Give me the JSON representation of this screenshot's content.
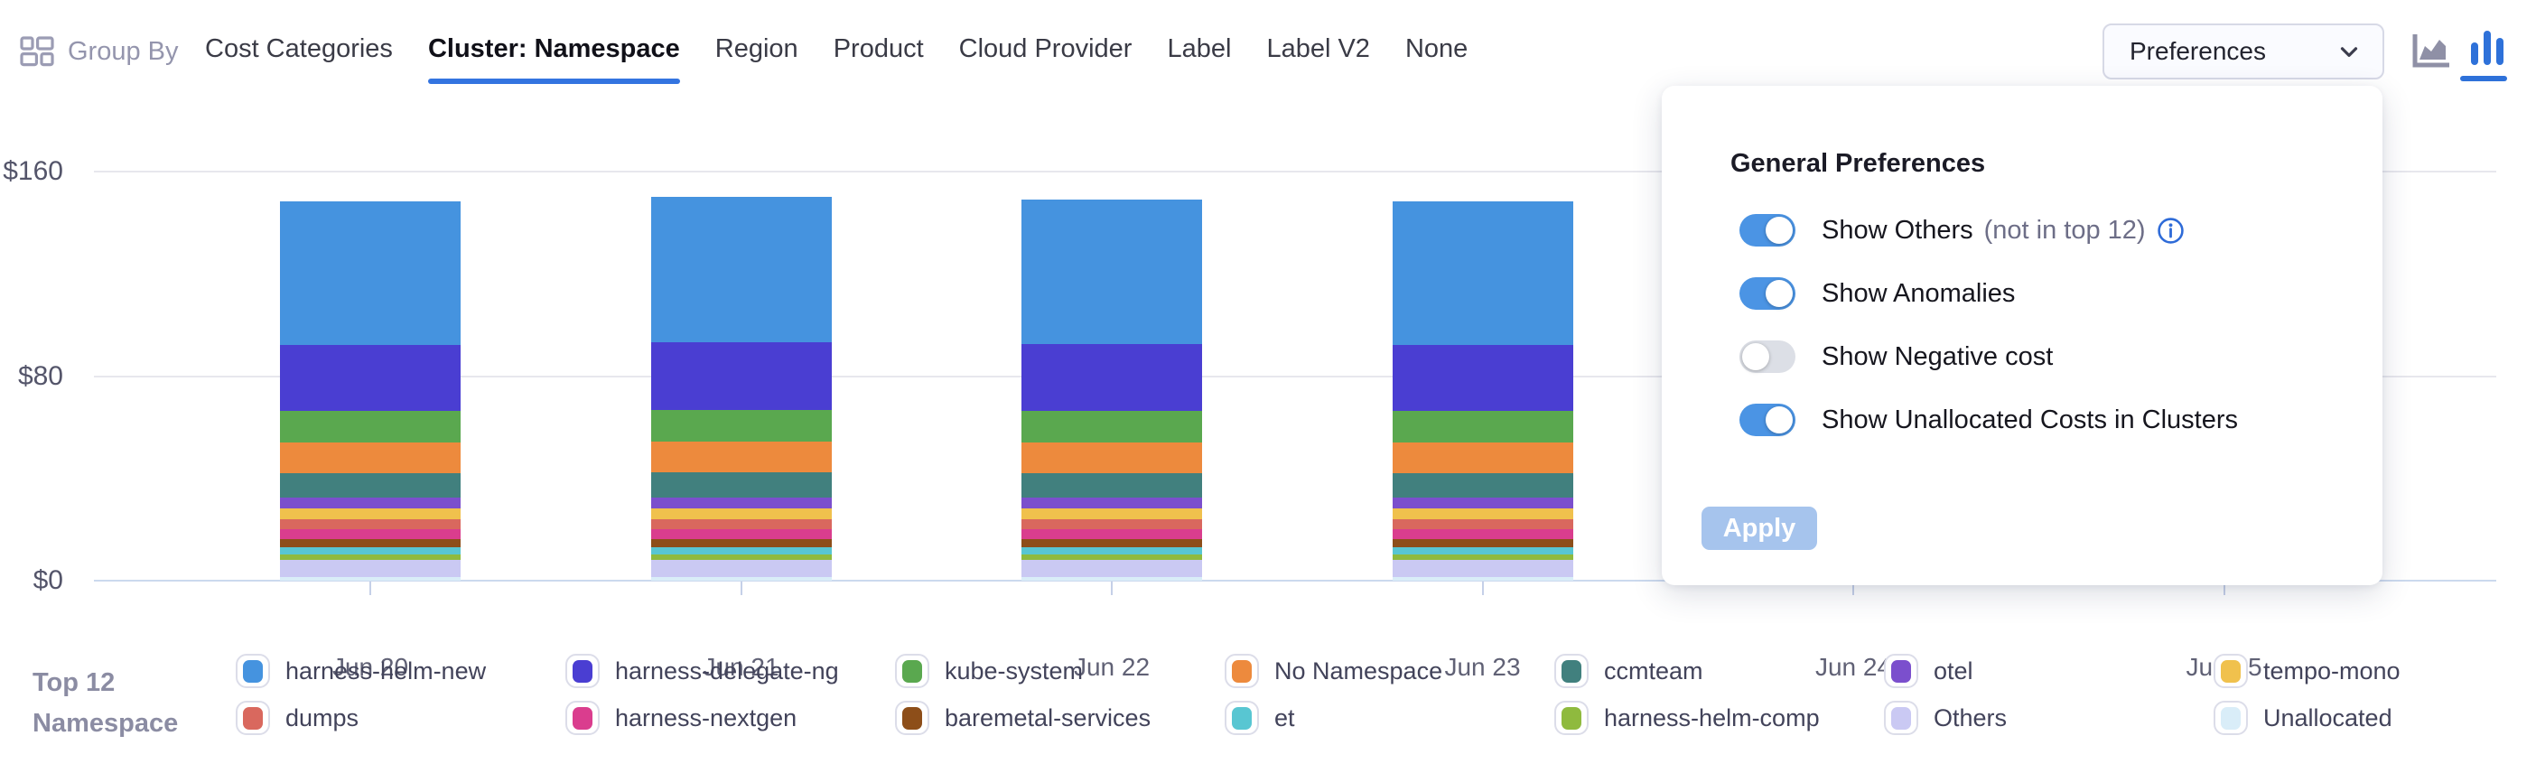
{
  "header": {
    "group_by_label": "Group By",
    "tabs": [
      {
        "label": "Cost Categories",
        "active": false
      },
      {
        "label": "Cluster: Namespace",
        "active": true
      },
      {
        "label": "Region",
        "active": false
      },
      {
        "label": "Product",
        "active": false
      },
      {
        "label": "Cloud Provider",
        "active": false
      },
      {
        "label": "Label",
        "active": false
      },
      {
        "label": "Label V2",
        "active": false
      },
      {
        "label": "None",
        "active": false
      }
    ],
    "preferences_button": {
      "label": "Preferences"
    },
    "chart_type_icons": [
      {
        "name": "area-chart",
        "active": false
      },
      {
        "name": "bar-chart",
        "active": true
      }
    ]
  },
  "preferences_panel": {
    "title": "General Preferences",
    "toggles": [
      {
        "label": "Show Others",
        "suffix": "(not in top 12)",
        "info_icon": true,
        "on": true
      },
      {
        "label": "Show Anomalies",
        "suffix": "",
        "info_icon": false,
        "on": true
      },
      {
        "label": "Show Negative cost",
        "suffix": "",
        "info_icon": false,
        "on": false
      },
      {
        "label": "Show Unallocated Costs in Clusters",
        "suffix": "",
        "info_icon": false,
        "on": true
      }
    ],
    "apply_button": {
      "label": "Apply",
      "enabled": false
    }
  },
  "legend": {
    "title_line1": "Top 12",
    "title_line2": "Namespace",
    "items": [
      {
        "label": "harness-helm-new",
        "color": "#4593df"
      },
      {
        "label": "harness-delegate-ng",
        "color": "#4a3ed2"
      },
      {
        "label": "kube-system",
        "color": "#5aa84f"
      },
      {
        "label": "No Namespace",
        "color": "#ed8a3d"
      },
      {
        "label": "ccmteam",
        "color": "#41807e"
      },
      {
        "label": "otel",
        "color": "#7b4fcd"
      },
      {
        "label": "tempo-mono",
        "color": "#f0c14d"
      },
      {
        "label": "dumps",
        "color": "#d9685e"
      },
      {
        "label": "harness-nextgen",
        "color": "#da3d8e"
      },
      {
        "label": "baremetal-services",
        "color": "#8d4e19"
      },
      {
        "label": "et",
        "color": "#58c6d2"
      },
      {
        "label": "harness-helm-comp",
        "color": "#8fba3e"
      },
      {
        "label": "Others",
        "color": "#cac9f3"
      },
      {
        "label": "Unallocated",
        "color": "#d9edf8"
      }
    ]
  },
  "chart_data": {
    "type": "bar",
    "stacked": true,
    "x_labels": [
      "Jun 20",
      "Jun 21",
      "Jun 22",
      "Jun 23",
      "Jun 24",
      "Jun 25"
    ],
    "y_ticks": [
      {
        "label": "$0",
        "value": 0
      },
      {
        "label": "$80",
        "value": 80
      },
      {
        "label": "$160",
        "value": 160
      }
    ],
    "ylim": [
      0,
      160
    ],
    "series_bottom_to_top": [
      {
        "name": "Unallocated",
        "values": [
          1.4,
          1.4,
          1.4,
          1.4,
          null,
          null
        ]
      },
      {
        "name": "Others",
        "values": [
          6.7,
          6.8,
          6.7,
          6.7,
          null,
          null
        ]
      },
      {
        "name": "harness-helm-comp",
        "values": [
          2.1,
          2.1,
          2.1,
          2.1,
          null,
          null
        ]
      },
      {
        "name": "et",
        "values": [
          2.8,
          2.8,
          2.8,
          2.8,
          null,
          null
        ]
      },
      {
        "name": "baremetal-services",
        "values": [
          3.2,
          3.2,
          3.2,
          3.2,
          null,
          null
        ]
      },
      {
        "name": "harness-nextgen",
        "values": [
          3.9,
          3.9,
          3.9,
          3.9,
          null,
          null
        ]
      },
      {
        "name": "dumps",
        "values": [
          3.9,
          3.9,
          3.9,
          3.9,
          null,
          null
        ]
      },
      {
        "name": "tempo-mono",
        "values": [
          4.2,
          4.2,
          4.2,
          4.2,
          null,
          null
        ]
      },
      {
        "name": "otel",
        "values": [
          4.2,
          4.3,
          4.2,
          4.2,
          null,
          null
        ]
      },
      {
        "name": "ccmteam",
        "values": [
          9.6,
          9.7,
          9.6,
          9.6,
          null,
          null
        ]
      },
      {
        "name": "No Namespace",
        "values": [
          12.0,
          12.1,
          12.0,
          12.0,
          null,
          null
        ]
      },
      {
        "name": "kube-system",
        "values": [
          12.4,
          12.5,
          12.4,
          12.4,
          null,
          null
        ]
      },
      {
        "name": "harness-delegate-ng",
        "values": [
          25.8,
          26.2,
          26.0,
          25.8,
          null,
          null
        ]
      },
      {
        "name": "harness-helm-new",
        "values": [
          56.3,
          57.0,
          56.6,
          56.2,
          null,
          null
        ]
      }
    ]
  }
}
